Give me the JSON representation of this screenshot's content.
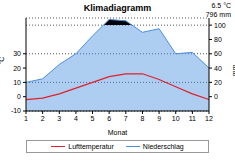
{
  "chart_data": {
    "type": "line",
    "title": "Klimadiagramm",
    "annotations": [
      "6.5 °C",
      "796 mm"
    ],
    "x_label": "Monat",
    "y_label": "°C",
    "y2_label": "mm",
    "categories": [
      "1",
      "2",
      "3",
      "4",
      "5",
      "6",
      "7",
      "8",
      "9",
      "10",
      "11",
      "12"
    ],
    "series": [
      {
        "name": "Lufttemperatur",
        "color": "#e0202a",
        "type": "line",
        "values": [
          -2,
          -1,
          2,
          6,
          10,
          14,
          16,
          16,
          12,
          7,
          2,
          -2
        ]
      },
      {
        "name": "Niederschlag",
        "color": "#4a8fe0",
        "type": "area",
        "axis": "y2",
        "values": [
          20,
          25,
          45,
          60,
          85,
          108,
          106,
          90,
          95,
          60,
          62,
          40
        ]
      }
    ],
    "ylim": [
      -10,
      55
    ],
    "yticks": [
      -10,
      0,
      10,
      20,
      30
    ],
    "y2lim": [
      -20,
      110
    ],
    "y2ticks": [
      0,
      20,
      40,
      60,
      80,
      100
    ],
    "grid": true,
    "legend": "bottom"
  }
}
